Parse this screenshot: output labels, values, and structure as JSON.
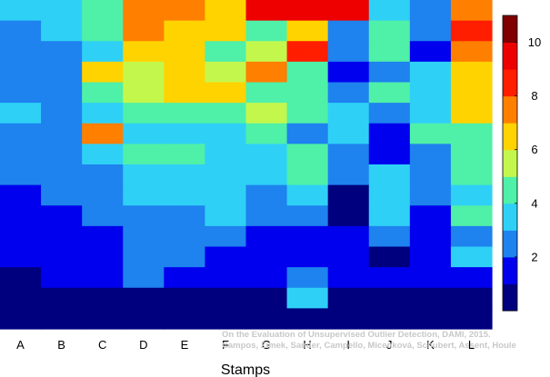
{
  "chart_data": {
    "type": "heatmap",
    "title": "",
    "xlabel": "Stamps",
    "ylabel": "",
    "categories": [
      "A",
      "B",
      "C",
      "D",
      "E",
      "F",
      "G",
      "H",
      "I",
      "J",
      "K",
      "L"
    ],
    "rows_top_to_bottom": [
      [
        4,
        4,
        5,
        8,
        8,
        7,
        10,
        10,
        10,
        4,
        3,
        8
      ],
      [
        3,
        4,
        5,
        8,
        7,
        7,
        5,
        7,
        3,
        5,
        3,
        9
      ],
      [
        3,
        3,
        4,
        7,
        7,
        5,
        6,
        9,
        3,
        5,
        2,
        8
      ],
      [
        3,
        3,
        7,
        6,
        7,
        6,
        8,
        5,
        2,
        3,
        4,
        7
      ],
      [
        3,
        3,
        5,
        6,
        7,
        7,
        5,
        5,
        3,
        5,
        4,
        7
      ],
      [
        4,
        3,
        4,
        5,
        5,
        5,
        6,
        5,
        4,
        3,
        4,
        7
      ],
      [
        3,
        3,
        8,
        4,
        4,
        4,
        5,
        3,
        4,
        2,
        5,
        5
      ],
      [
        3,
        3,
        4,
        5,
        5,
        4,
        4,
        5,
        3,
        2,
        3,
        5
      ],
      [
        3,
        3,
        3,
        4,
        4,
        4,
        4,
        5,
        3,
        4,
        3,
        5
      ],
      [
        2,
        3,
        3,
        4,
        4,
        4,
        3,
        4,
        1,
        4,
        3,
        4
      ],
      [
        2,
        2,
        3,
        3,
        3,
        4,
        3,
        3,
        1,
        4,
        2,
        5
      ],
      [
        2,
        2,
        2,
        3,
        3,
        3,
        2,
        2,
        2,
        3,
        2,
        3
      ],
      [
        2,
        2,
        2,
        3,
        3,
        2,
        2,
        2,
        2,
        1,
        2,
        4
      ],
      [
        1,
        2,
        2,
        3,
        2,
        2,
        2,
        3,
        2,
        2,
        2,
        2
      ],
      [
        1,
        1,
        1,
        1,
        1,
        1,
        1,
        4,
        1,
        1,
        1,
        1
      ],
      [
        1,
        1,
        1,
        1,
        1,
        1,
        1,
        1,
        1,
        1,
        1,
        1
      ]
    ],
    "colormap": "jet",
    "colorbar": {
      "range": [
        0,
        11
      ],
      "ticks": [
        2,
        4,
        6,
        8,
        10
      ]
    }
  },
  "credit_line1": "On the Evaluation of Unsupervised Outlier Detection, DAMI, 2015.",
  "credit_line2": "Campos, Zimek, Sander, Campello, Micenková, Schubert, Assent, Houle"
}
